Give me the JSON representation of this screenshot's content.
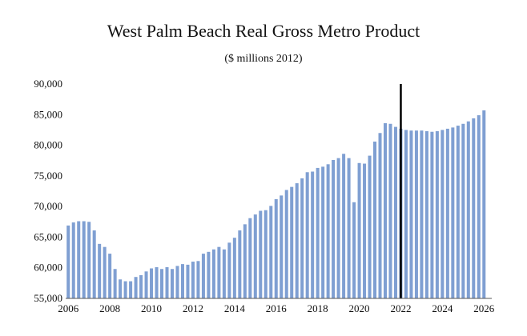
{
  "chart_data": {
    "type": "bar",
    "title": "West Palm Beach Real Gross Metro Product",
    "subtitle": "($ millions 2012)",
    "xlabel": "",
    "ylabel": "",
    "ylim": [
      55000,
      90000
    ],
    "y_ticks": [
      "55,000",
      "60,000",
      "65,000",
      "70,000",
      "75,000",
      "80,000",
      "85,000",
      "90,000"
    ],
    "x_ticks": [
      "2006",
      "2008",
      "2010",
      "2012",
      "2014",
      "2016",
      "2018",
      "2020",
      "2022",
      "2024",
      "2026"
    ],
    "xlim": [
      2006,
      2026.25
    ],
    "grid": false,
    "legend": "none",
    "bar_color": "#7f9fd2",
    "marker_color": "#000000",
    "forecast_marker_x": 2022.0,
    "x": [
      2006.0,
      2006.25,
      2006.5,
      2006.75,
      2007.0,
      2007.25,
      2007.5,
      2007.75,
      2008.0,
      2008.25,
      2008.5,
      2008.75,
      2009.0,
      2009.25,
      2009.5,
      2009.75,
      2010.0,
      2010.25,
      2010.5,
      2010.75,
      2011.0,
      2011.25,
      2011.5,
      2011.75,
      2012.0,
      2012.25,
      2012.5,
      2012.75,
      2013.0,
      2013.25,
      2013.5,
      2013.75,
      2014.0,
      2014.25,
      2014.5,
      2014.75,
      2015.0,
      2015.25,
      2015.5,
      2015.75,
      2016.0,
      2016.25,
      2016.5,
      2016.75,
      2017.0,
      2017.25,
      2017.5,
      2017.75,
      2018.0,
      2018.25,
      2018.5,
      2018.75,
      2019.0,
      2019.25,
      2019.5,
      2019.75,
      2020.0,
      2020.25,
      2020.5,
      2020.75,
      2021.0,
      2021.25,
      2021.5,
      2021.75,
      2022.0,
      2022.25,
      2022.5,
      2022.75,
      2023.0,
      2023.25,
      2023.5,
      2023.75,
      2024.0,
      2024.25,
      2024.5,
      2024.75,
      2025.0,
      2025.25,
      2025.5,
      2025.75,
      2026.0
    ],
    "values": [
      66900,
      67400,
      67600,
      67600,
      67500,
      66100,
      63900,
      63400,
      62300,
      59800,
      58100,
      57800,
      57800,
      58500,
      58800,
      59400,
      59900,
      60100,
      59800,
      60100,
      59800,
      60300,
      60600,
      60500,
      61000,
      61100,
      62300,
      62600,
      63000,
      63400,
      63000,
      64100,
      64900,
      66100,
      67100,
      68100,
      68700,
      69300,
      69400,
      70100,
      71200,
      71800,
      72700,
      73200,
      73800,
      74600,
      75600,
      75700,
      76300,
      76500,
      76900,
      77600,
      77900,
      78600,
      77900,
      70700,
      77100,
      77000,
      78300,
      80600,
      82000,
      83600,
      83500,
      83000,
      82700,
      82500,
      82400,
      82400,
      82400,
      82300,
      82200,
      82300,
      82500,
      82700,
      82900,
      83200,
      83500,
      83900,
      84400,
      84900,
      85700
    ]
  }
}
